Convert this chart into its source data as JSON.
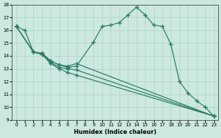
{
  "xlabel": "Humidex (Indice chaleur)",
  "xlim": [
    -0.5,
    23.5
  ],
  "ylim": [
    9,
    18
  ],
  "xticks": [
    0,
    1,
    2,
    3,
    4,
    5,
    6,
    7,
    8,
    9,
    10,
    11,
    12,
    13,
    14,
    15,
    16,
    17,
    18,
    19,
    20,
    21,
    22,
    23
  ],
  "yticks": [
    9,
    10,
    11,
    12,
    13,
    14,
    15,
    16,
    17,
    18
  ],
  "line_color": "#2a7a66",
  "bg_color": "#cce8e0",
  "grid_color": "#aacfc8",
  "series": [
    {
      "x": [
        0,
        1,
        2,
        3,
        4,
        5,
        6,
        7,
        9,
        10,
        11,
        12,
        13,
        14,
        15,
        16,
        17,
        18,
        19,
        20,
        21,
        22,
        23
      ],
      "y": [
        16.3,
        16.0,
        14.3,
        14.2,
        13.6,
        13.3,
        13.1,
        13.2,
        15.1,
        16.3,
        16.4,
        16.6,
        17.2,
        17.8,
        17.2,
        16.4,
        16.3,
        14.9,
        12.0,
        11.1,
        10.5,
        10.0,
        9.3
      ]
    },
    {
      "x": [
        0,
        2,
        3,
        4,
        5,
        6,
        7,
        23
      ],
      "y": [
        16.3,
        14.3,
        14.2,
        13.6,
        13.3,
        13.2,
        13.4,
        9.3
      ]
    },
    {
      "x": [
        0,
        2,
        3,
        4,
        5,
        6,
        7,
        23
      ],
      "y": [
        16.3,
        14.3,
        14.2,
        13.5,
        13.1,
        13.0,
        12.9,
        9.3
      ]
    },
    {
      "x": [
        0,
        2,
        3,
        4,
        5,
        6,
        7,
        23
      ],
      "y": [
        16.3,
        14.3,
        14.1,
        13.4,
        13.0,
        12.7,
        12.5,
        9.3
      ]
    }
  ]
}
